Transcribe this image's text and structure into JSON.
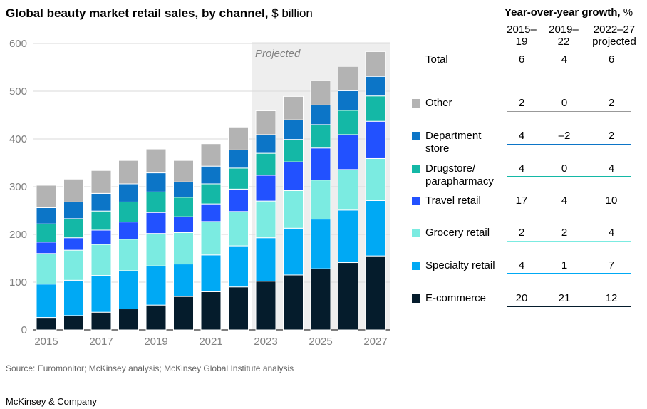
{
  "title": {
    "bold": "Global beauty market retail sales, by channel,",
    "unit": "$ billion"
  },
  "chart_data": {
    "type": "bar",
    "stacked": true,
    "categories": [
      "2015",
      "2016",
      "2017",
      "2018",
      "2019",
      "2020",
      "2021",
      "2022",
      "2023",
      "2024",
      "2025",
      "2026",
      "2027"
    ],
    "x_tick_labels": [
      "2015",
      "2017",
      "2019",
      "2021",
      "2023",
      "2025",
      "2027"
    ],
    "ylim": [
      0,
      600
    ],
    "y_ticks": [
      0,
      100,
      200,
      300,
      400,
      500,
      600
    ],
    "grid": true,
    "projected_label": "Projected",
    "projected_from": "2023",
    "series": [
      {
        "name": "E-commerce",
        "color": "#051c2c",
        "values": [
          26,
          30,
          37,
          44,
          52,
          70,
          80,
          90,
          102,
          115,
          128,
          141,
          155
        ]
      },
      {
        "name": "Specialty retail",
        "color": "#00a9f4",
        "values": [
          70,
          74,
          77,
          80,
          82,
          68,
          77,
          86,
          91,
          98,
          104,
          110,
          116
        ]
      },
      {
        "name": "Grocery retail",
        "color": "#7bebe1",
        "values": [
          64,
          63,
          65,
          66,
          68,
          66,
          70,
          72,
          77,
          79,
          82,
          85,
          88
        ]
      },
      {
        "name": "Travel retail",
        "color": "#2251ff",
        "values": [
          24,
          26,
          30,
          36,
          44,
          33,
          37,
          47,
          54,
          60,
          67,
          73,
          78
        ]
      },
      {
        "name": "Drugstore/ parapharmacy",
        "color": "#14b8a6",
        "values": [
          38,
          40,
          40,
          42,
          43,
          41,
          42,
          44,
          46,
          47,
          49,
          51,
          53
        ]
      },
      {
        "name": "Department store",
        "color": "#0c75c7",
        "values": [
          34,
          35,
          37,
          38,
          40,
          32,
          37,
          38,
          39,
          41,
          41,
          41,
          41
        ]
      },
      {
        "name": "Other",
        "color": "#b3b3b3",
        "values": [
          47,
          48,
          48,
          49,
          50,
          45,
          47,
          48,
          50,
          49,
          51,
          51,
          52
        ]
      }
    ]
  },
  "growth": {
    "heading_bold": "Year-over-year growth,",
    "heading_unit": "%",
    "columns": [
      {
        "line1": "2015–",
        "line2": "19"
      },
      {
        "line1": "2019–",
        "line2": "22"
      },
      {
        "line1": "2022–27",
        "line2": "projected"
      }
    ],
    "rows": [
      {
        "label": "Total",
        "values": [
          "6",
          "4",
          "6"
        ]
      },
      {
        "label": "Other",
        "values": [
          "2",
          "0",
          "2"
        ]
      },
      {
        "label": "Department store",
        "values": [
          "4",
          "–2",
          "2"
        ]
      },
      {
        "label": "Drugstore/ parapharmacy",
        "values": [
          "4",
          "0",
          "4"
        ]
      },
      {
        "label": "Travel retail",
        "values": [
          "17",
          "4",
          "10"
        ]
      },
      {
        "label": "Grocery retail",
        "values": [
          "2",
          "2",
          "4"
        ]
      },
      {
        "label": "Specialty retail",
        "values": [
          "4",
          "1",
          "7"
        ]
      },
      {
        "label": "E-commerce",
        "values": [
          "20",
          "21",
          "12"
        ]
      }
    ]
  },
  "footer": {
    "source": "Source: Euromonitor; McKinsey analysis; McKinsey Global Institute analysis",
    "brand": "McKinsey & Company"
  }
}
